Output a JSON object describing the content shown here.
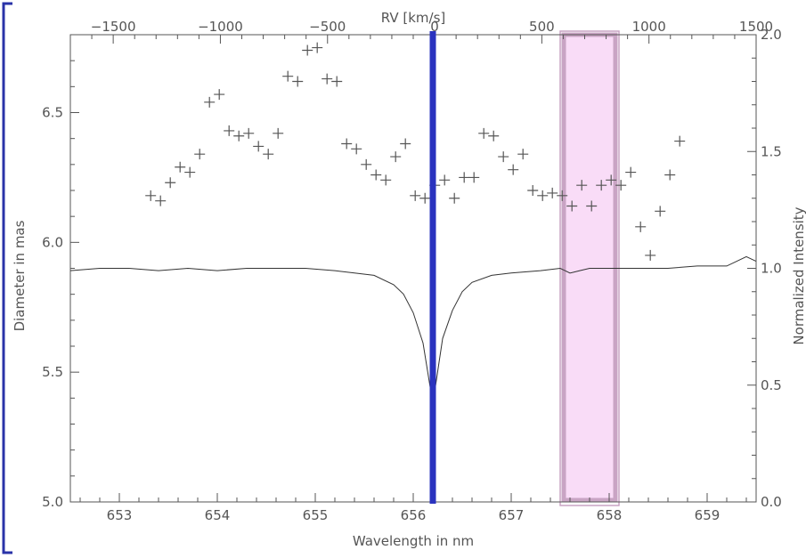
{
  "chart_data": {
    "type": "scatter",
    "xlabel": "Wavelength in nm",
    "ylabel": "Diameter in mas",
    "y2label": "Normalized Intensity",
    "x2label": "RV [km/s]",
    "xlim": [
      652.5,
      659.5
    ],
    "ylim": [
      5.0,
      6.8
    ],
    "y2lim": [
      0.0,
      2.0
    ],
    "x2lim": [
      -1700,
      1500
    ],
    "x_ticks": [
      "653",
      "654",
      "655",
      "656",
      "657",
      "658",
      "659"
    ],
    "y_ticks": [
      "5.0",
      "5.5",
      "6.0",
      "6.5"
    ],
    "y2_ticks": [
      "0.0",
      "0.5",
      "1.0",
      "1.5",
      "2.0"
    ],
    "x2_ticks": [
      "−1500",
      "−1000",
      "−500",
      "0",
      "500",
      "1000",
      "1500"
    ],
    "grid": false,
    "highlight_line": {
      "x": 656.2,
      "color": "#2a33bf"
    },
    "highlight_band": {
      "x": [
        657.5,
        658.1
      ],
      "fill": "#f9dcf7",
      "edge": "#c9a4c4"
    },
    "series": [
      {
        "marker": "+",
        "color": "#555555",
        "x": [
          653.32,
          653.42,
          653.52,
          653.62,
          653.72,
          653.82,
          653.92,
          654.02,
          654.12,
          654.22,
          654.32,
          654.42,
          654.52,
          654.62,
          654.72,
          654.82,
          654.92,
          655.02,
          655.12,
          655.22,
          655.32,
          655.42,
          655.52,
          655.62,
          655.72,
          655.82,
          655.92,
          656.02,
          656.12,
          656.22,
          656.32,
          656.42,
          656.52,
          656.62,
          656.72,
          656.82,
          656.92,
          657.02,
          657.12,
          657.22,
          657.32,
          657.42,
          657.52,
          657.62,
          657.72,
          657.82,
          657.92,
          658.02,
          658.12,
          658.22,
          658.32,
          658.42,
          658.52,
          658.62,
          658.72
        ],
        "y": [
          6.18,
          6.16,
          6.23,
          6.29,
          6.27,
          6.34,
          6.54,
          6.57,
          6.43,
          6.41,
          6.42,
          6.37,
          6.34,
          6.42,
          6.64,
          6.62,
          6.74,
          6.75,
          6.63,
          6.62,
          6.38,
          6.36,
          6.3,
          6.26,
          6.24,
          6.33,
          6.38,
          6.18,
          6.17,
          6.22,
          6.24,
          6.17,
          6.25,
          6.25,
          6.42,
          6.41,
          6.33,
          6.28,
          6.34,
          6.2,
          6.18,
          6.19,
          6.18,
          6.14,
          6.22,
          6.14,
          6.22,
          6.24,
          6.22,
          6.27,
          6.06,
          5.95,
          6.12,
          6.26,
          6.39
        ]
      },
      {
        "name_hidden": "",
        "marker": "line",
        "axis": "right",
        "color": "#333333",
        "x": [
          652.5,
          652.8,
          653.1,
          653.4,
          653.7,
          654.0,
          654.3,
          654.6,
          654.9,
          655.2,
          655.4,
          655.6,
          655.8,
          655.9,
          656.0,
          656.1,
          656.15,
          656.2,
          656.25,
          656.3,
          656.4,
          656.5,
          656.6,
          656.8,
          657.0,
          657.3,
          657.5,
          657.6,
          657.7,
          657.8,
          657.9,
          658.0,
          658.3,
          658.6,
          658.9,
          659.2,
          659.4,
          659.5
        ],
        "y": [
          0.99,
          1.0,
          1.0,
          0.99,
          1.0,
          0.99,
          1.0,
          1.0,
          1.0,
          0.99,
          0.98,
          0.97,
          0.93,
          0.89,
          0.81,
          0.68,
          0.55,
          0.42,
          0.56,
          0.7,
          0.82,
          0.9,
          0.94,
          0.97,
          0.98,
          0.99,
          1.0,
          0.98,
          0.99,
          1.0,
          1.0,
          1.0,
          1.0,
          1.0,
          1.01,
          1.01,
          1.05,
          1.03
        ]
      }
    ]
  }
}
